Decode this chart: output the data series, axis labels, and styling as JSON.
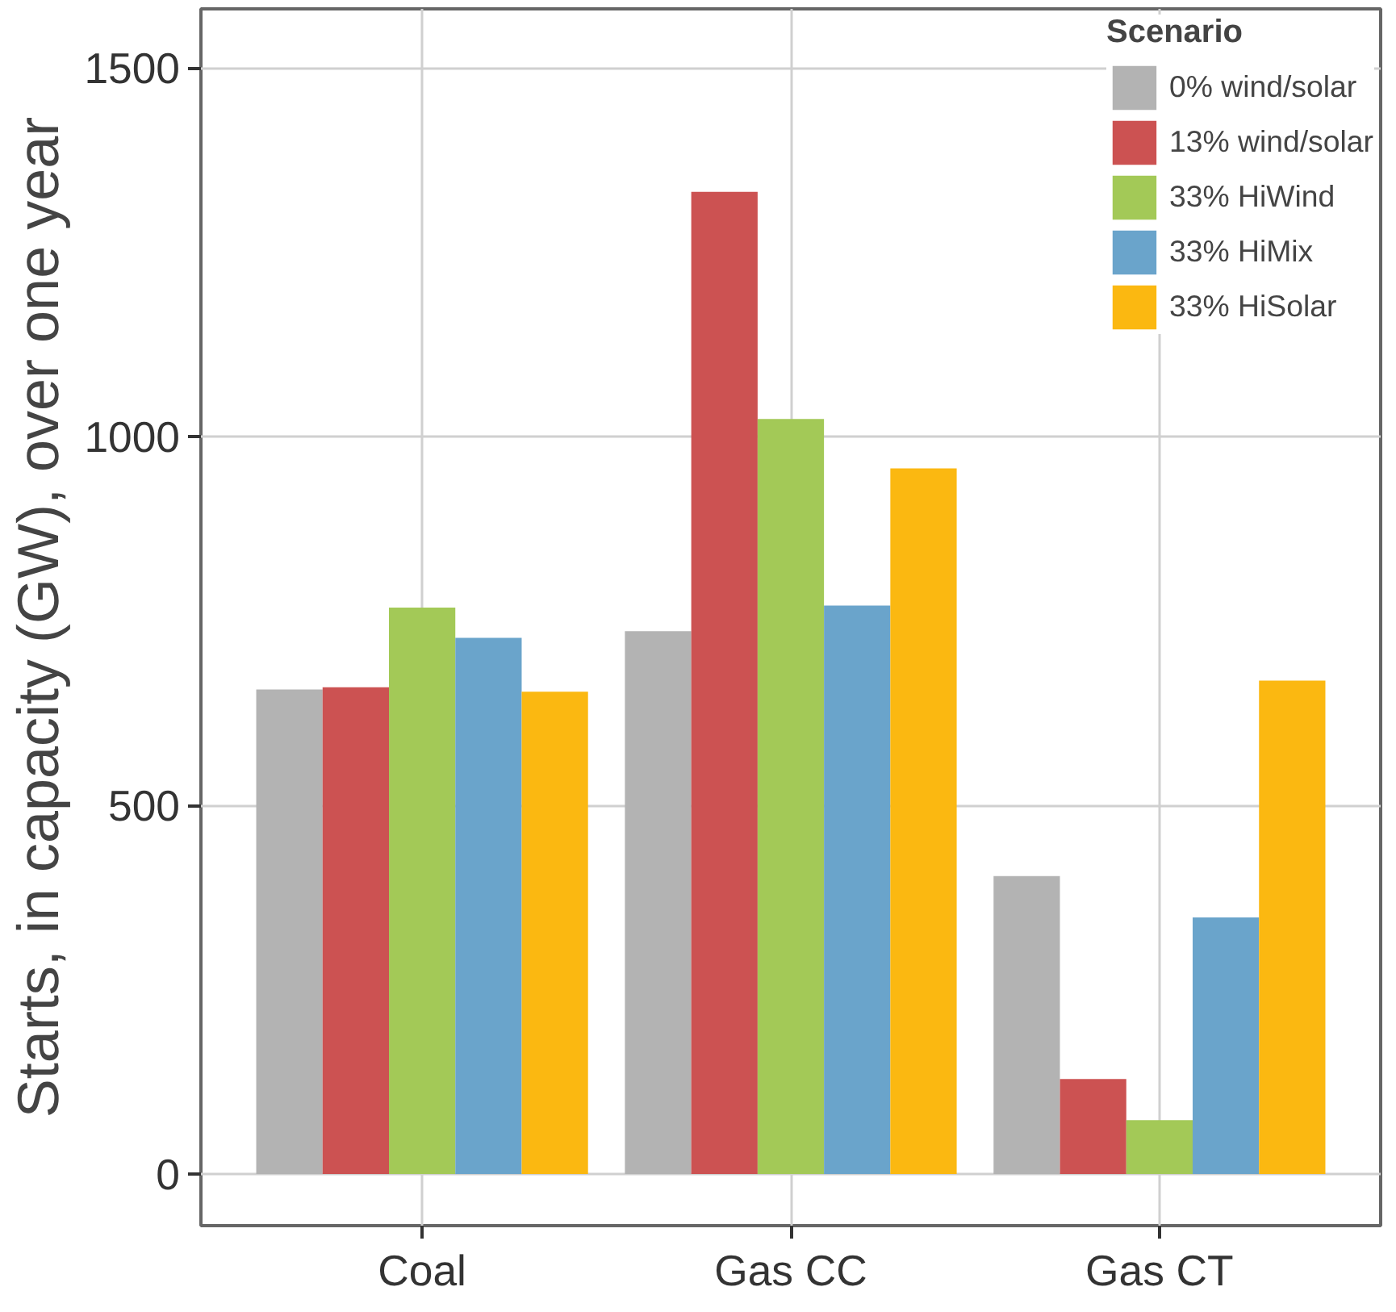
{
  "chart_data": {
    "type": "bar",
    "ylabel": "Starts, in capacity (GW), over one year",
    "legend_title": "Scenario",
    "categories": [
      "Coal",
      "Gas CC",
      "Gas CT"
    ],
    "series": [
      {
        "name": "0% wind/solar",
        "color": "#b3b3b3",
        "values": [
          657,
          736,
          404
        ]
      },
      {
        "name": "13% wind/solar",
        "color": "#cc5252",
        "values": [
          660,
          1332,
          129
        ]
      },
      {
        "name": "33% HiWind",
        "color": "#a3c957",
        "values": [
          768,
          1024,
          73
        ]
      },
      {
        "name": "33% HiMix",
        "color": "#6aa4cb",
        "values": [
          727,
          771,
          348
        ]
      },
      {
        "name": "33% HiSolar",
        "color": "#fbb811",
        "values": [
          654,
          957,
          669
        ]
      }
    ],
    "ylim": [
      -70,
      1580
    ],
    "yticks": [
      0,
      500,
      1000,
      1500
    ],
    "grid": true,
    "legend": "top right"
  }
}
